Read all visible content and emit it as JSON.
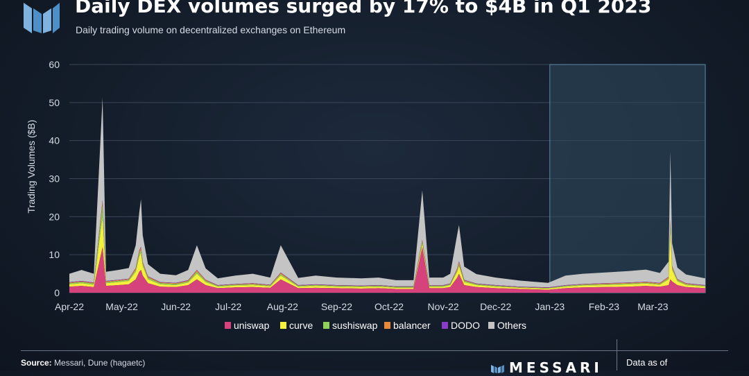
{
  "header": {
    "title": "Daily DEX volumes surged by 17% to $4B in Q1 2023",
    "subtitle": "Daily trading volume on decentralized exchanges on Ethereum"
  },
  "footer": {
    "source_label": "Source:",
    "source_text": " Messari, Dune (hagaetc)",
    "brand": "MESSARI",
    "as_of": "Data as of"
  },
  "colors": {
    "uniswap": "#d6427c",
    "curve": "#f4f03c",
    "sushiswap": "#8fcf5a",
    "balancer": "#e8883a",
    "DODO": "#8a3cc8",
    "Others": "#c4c4c4",
    "highlight": "#2f4a5e"
  },
  "chart_data": {
    "type": "area",
    "stacked": true,
    "title": "Daily DEX volumes surged by 17% to $4B in Q1 2023",
    "subtitle": "Daily trading volume on decentralized exchanges on Ethereum",
    "xlabel": "",
    "ylabel": "Trading Volumes ($B)",
    "ylim": [
      0,
      60
    ],
    "yticks": [
      0,
      10,
      20,
      30,
      40,
      50,
      60
    ],
    "xlim": [
      "2022-04-01",
      "2023-03-31"
    ],
    "xticks": [
      "Apr-22",
      "May-22",
      "Jun-22",
      "Jul-22",
      "Aug-22",
      "Sep-22",
      "Oct-22",
      "Nov-22",
      "Dec-22",
      "Jan-23",
      "Feb-23",
      "Mar-23"
    ],
    "xtick_dates": [
      "2022-04-01",
      "2022-05-01",
      "2022-06-01",
      "2022-07-01",
      "2022-08-01",
      "2022-09-01",
      "2022-10-01",
      "2022-11-01",
      "2022-12-01",
      "2023-01-01",
      "2023-02-01",
      "2023-03-01"
    ],
    "grid": "horizontal",
    "legend": "bottom",
    "highlight_range": [
      "2023-01-01",
      "2023-03-31"
    ],
    "x": [
      "2022-04-01",
      "2022-04-08",
      "2022-04-15",
      "2022-04-20",
      "2022-04-22",
      "2022-04-29",
      "2022-05-05",
      "2022-05-09",
      "2022-05-11",
      "2022-05-12",
      "2022-05-13",
      "2022-05-16",
      "2022-05-23",
      "2022-06-01",
      "2022-06-08",
      "2022-06-13",
      "2022-06-18",
      "2022-06-25",
      "2022-07-05",
      "2022-07-15",
      "2022-07-25",
      "2022-07-31",
      "2022-08-10",
      "2022-08-20",
      "2022-09-01",
      "2022-09-15",
      "2022-09-25",
      "2022-10-05",
      "2022-10-15",
      "2022-10-20",
      "2022-10-24",
      "2022-11-01",
      "2022-11-05",
      "2022-11-09",
      "2022-11-10",
      "2022-11-13",
      "2022-11-20",
      "2022-12-01",
      "2022-12-15",
      "2022-12-31",
      "2023-01-10",
      "2023-01-20",
      "2023-02-01",
      "2023-02-15",
      "2023-02-25",
      "2023-03-05",
      "2023-03-10",
      "2023-03-11",
      "2023-03-12",
      "2023-03-15",
      "2023-03-20",
      "2023-03-31"
    ],
    "series": [
      {
        "name": "uniswap",
        "values": [
          1.6,
          1.8,
          1.5,
          12.0,
          1.8,
          2.0,
          2.2,
          3.5,
          5.5,
          6.0,
          4.5,
          2.5,
          1.6,
          1.5,
          2.0,
          3.5,
          2.0,
          1.2,
          1.4,
          1.5,
          1.3,
          3.5,
          1.2,
          1.3,
          1.2,
          1.1,
          1.2,
          1.0,
          1.0,
          12.0,
          1.2,
          1.2,
          1.5,
          4.0,
          5.0,
          2.0,
          1.5,
          1.2,
          1.0,
          0.8,
          1.2,
          1.4,
          1.5,
          1.6,
          1.8,
          1.6,
          2.0,
          3.5,
          3.0,
          2.0,
          1.5,
          1.2
        ]
      },
      {
        "name": "curve",
        "values": [
          0.6,
          0.7,
          0.6,
          8.0,
          0.7,
          0.8,
          0.9,
          2.0,
          4.0,
          4.5,
          2.5,
          1.0,
          0.6,
          0.5,
          0.7,
          1.5,
          0.8,
          0.4,
          0.5,
          0.5,
          0.4,
          1.0,
          0.4,
          0.5,
          0.4,
          0.4,
          0.4,
          0.3,
          0.3,
          1.0,
          0.4,
          0.4,
          0.5,
          1.5,
          2.0,
          0.8,
          0.5,
          0.4,
          0.3,
          0.3,
          0.4,
          0.5,
          0.5,
          0.6,
          0.6,
          0.5,
          1.5,
          13.0,
          3.0,
          1.0,
          0.5,
          0.4
        ]
      },
      {
        "name": "sushiswap",
        "values": [
          0.3,
          0.3,
          0.3,
          3.0,
          0.3,
          0.3,
          0.3,
          0.5,
          0.8,
          0.8,
          0.6,
          0.4,
          0.3,
          0.3,
          0.3,
          0.5,
          0.3,
          0.2,
          0.2,
          0.2,
          0.2,
          0.4,
          0.2,
          0.2,
          0.2,
          0.2,
          0.2,
          0.2,
          0.2,
          0.5,
          0.2,
          0.2,
          0.2,
          0.4,
          0.5,
          0.3,
          0.2,
          0.2,
          0.1,
          0.1,
          0.2,
          0.2,
          0.2,
          0.2,
          0.2,
          0.2,
          0.3,
          1.5,
          0.5,
          0.3,
          0.2,
          0.2
        ]
      },
      {
        "name": "balancer",
        "values": [
          0.2,
          0.2,
          0.2,
          1.0,
          0.2,
          0.2,
          0.2,
          0.4,
          0.6,
          0.6,
          0.4,
          0.3,
          0.2,
          0.2,
          0.2,
          0.4,
          0.2,
          0.1,
          0.1,
          0.2,
          0.1,
          0.3,
          0.1,
          0.1,
          0.1,
          0.1,
          0.1,
          0.1,
          0.1,
          0.3,
          0.1,
          0.1,
          0.1,
          0.4,
          0.6,
          0.2,
          0.1,
          0.1,
          0.1,
          0.1,
          0.1,
          0.1,
          0.2,
          0.2,
          0.2,
          0.2,
          0.3,
          1.0,
          0.4,
          0.2,
          0.2,
          0.1
        ]
      },
      {
        "name": "DODO",
        "values": [
          0.1,
          0.1,
          0.1,
          0.3,
          0.1,
          0.1,
          0.1,
          0.1,
          0.2,
          0.2,
          0.1,
          0.1,
          0.1,
          0.1,
          0.1,
          0.1,
          0.1,
          0.1,
          0.1,
          0.1,
          0.1,
          0.1,
          0.1,
          0.1,
          0.1,
          0.1,
          0.1,
          0.1,
          0.1,
          0.1,
          0.1,
          0.1,
          0.1,
          0.1,
          0.2,
          0.1,
          0.1,
          0.1,
          0.1,
          0.1,
          0.1,
          0.1,
          0.1,
          0.1,
          0.1,
          0.1,
          0.1,
          0.2,
          0.1,
          0.1,
          0.1,
          0.1
        ]
      },
      {
        "name": "Others",
        "values": [
          2.2,
          2.9,
          2.3,
          27.0,
          2.4,
          2.6,
          2.8,
          6.0,
          10.0,
          12.5,
          7.0,
          3.2,
          2.2,
          2.0,
          2.7,
          6.5,
          3.0,
          1.8,
          2.2,
          2.5,
          1.9,
          7.2,
          1.9,
          2.3,
          2.0,
          1.9,
          2.0,
          1.6,
          1.6,
          13.0,
          2.0,
          2.0,
          2.6,
          9.0,
          9.5,
          3.5,
          2.5,
          2.0,
          1.6,
          1.2,
          2.5,
          2.7,
          2.8,
          3.0,
          3.2,
          2.6,
          4.0,
          18.0,
          6.0,
          3.0,
          2.3,
          1.8
        ]
      }
    ]
  }
}
